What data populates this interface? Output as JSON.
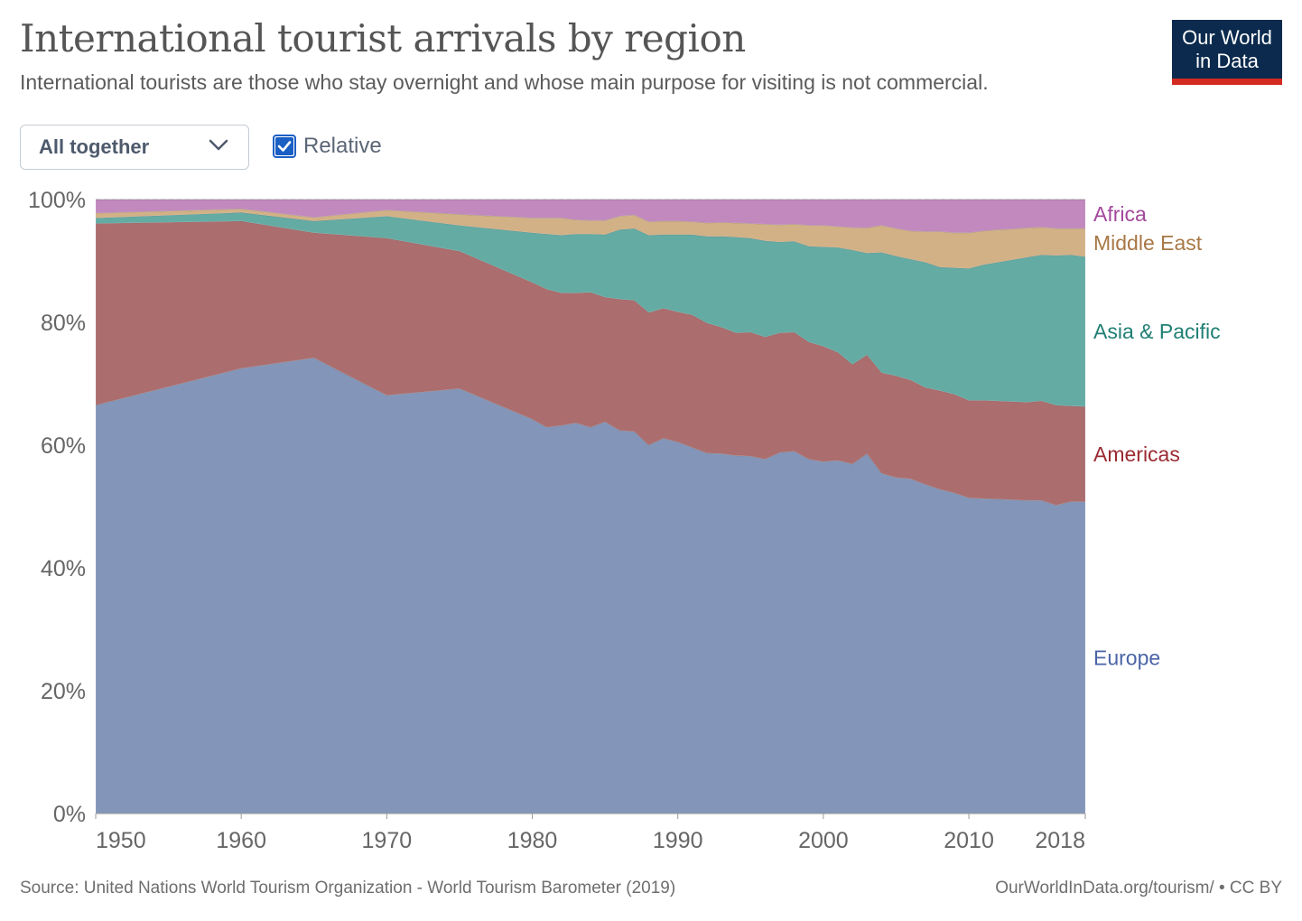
{
  "header": {
    "title": "International tourist arrivals by region",
    "subtitle": "International tourists are those who stay overnight and whose main purpose for visiting is not commercial.",
    "logo_line1": "Our World",
    "logo_line2": "in Data"
  },
  "controls": {
    "dropdown_value": "All together",
    "relative_label": "Relative",
    "relative_checked": true
  },
  "footer": {
    "source": "Source: United Nations World Tourism Organization - World Tourism Barometer (2019)",
    "license": "OurWorldInData.org/tourism/ • CC BY"
  },
  "chart_data": {
    "type": "area",
    "stacked": true,
    "relative": true,
    "title": "International tourist arrivals by region",
    "xlim": [
      1950,
      2018
    ],
    "ylim": [
      0,
      100
    ],
    "y_ticks": [
      0,
      20,
      40,
      60,
      80,
      100
    ],
    "y_tick_labels": [
      "0%",
      "20%",
      "40%",
      "60%",
      "80%",
      "100%"
    ],
    "x_ticks": [
      1950,
      1960,
      1970,
      1980,
      1990,
      2000,
      2010,
      2018
    ],
    "x_tick_labels": [
      "1950",
      "1960",
      "1970",
      "1980",
      "1990",
      "2000",
      "2010",
      "2018"
    ],
    "grid": "horizontal dashed",
    "legend_placement": "right (inline labels)",
    "x": [
      1950,
      1960,
      1965,
      1970,
      1975,
      1980,
      1981,
      1982,
      1983,
      1984,
      1985,
      1986,
      1987,
      1988,
      1989,
      1990,
      1991,
      1992,
      1993,
      1994,
      1995,
      1996,
      1997,
      1998,
      1999,
      2000,
      2001,
      2002,
      2003,
      2004,
      2005,
      2006,
      2007,
      2008,
      2009,
      2010,
      2011,
      2012,
      2013,
      2014,
      2015,
      2016,
      2017,
      2018
    ],
    "series": [
      {
        "name": "Europe",
        "color": "#8396b9",
        "label_color": "#4a64a6",
        "values": [
          66.5,
          72.5,
          74.2,
          68.1,
          69.2,
          64.2,
          62.9,
          63.2,
          63.6,
          62.9,
          63.8,
          62.4,
          62.2,
          60.0,
          61.1,
          60.5,
          59.6,
          58.7,
          58.6,
          58.3,
          58.2,
          57.7,
          58.8,
          59.0,
          57.7,
          57.3,
          57.5,
          57.5,
          58.6,
          55.4,
          54.7,
          54.5,
          53.6,
          52.8,
          52.2,
          51.4,
          51.3,
          51.2,
          51.1,
          51.0,
          51.0,
          50.2,
          50.8,
          50.8
        ]
      },
      {
        "name": "Americas",
        "color": "#ab6d6e",
        "label_color": "#9b2a31",
        "values": [
          29.6,
          24.0,
          20.4,
          25.6,
          22.4,
          22.3,
          22.5,
          21.6,
          21.2,
          22.0,
          20.3,
          21.4,
          21.4,
          21.6,
          21.2,
          21.2,
          21.6,
          21.2,
          20.6,
          20.0,
          20.2,
          19.9,
          19.5,
          19.4,
          19.1,
          18.8,
          17.6,
          16.4,
          16.1,
          16.4,
          16.6,
          16.1,
          15.8,
          16.1,
          16.1,
          15.9,
          16.0,
          16.0,
          16.0,
          16.0,
          16.2,
          16.3,
          15.6,
          15.5
        ]
      },
      {
        "name": "Asia & Pacific",
        "color": "#64aba3",
        "label_color": "#1f7f74",
        "values": [
          0.9,
          1.4,
          1.9,
          3.6,
          4.2,
          8.1,
          9.0,
          9.4,
          9.6,
          9.5,
          10.2,
          11.3,
          11.7,
          12.6,
          12.0,
          12.6,
          13.1,
          14.1,
          14.8,
          15.6,
          15.3,
          15.7,
          14.8,
          14.8,
          15.6,
          16.2,
          17.1,
          18.8,
          16.6,
          19.6,
          19.5,
          19.7,
          20.4,
          20.1,
          20.6,
          21.5,
          22.1,
          22.6,
          23.1,
          23.6,
          23.8,
          24.4,
          24.6,
          24.4
        ]
      },
      {
        "name": "Middle East",
        "color": "#d2b186",
        "label_color": "#a87845",
        "values": [
          0.8,
          0.6,
          0.6,
          1.0,
          1.8,
          2.4,
          2.6,
          2.8,
          2.3,
          2.2,
          2.3,
          2.2,
          2.2,
          2.2,
          2.2,
          2.2,
          2.1,
          2.2,
          2.3,
          2.3,
          2.4,
          2.7,
          2.8,
          2.8,
          3.4,
          3.5,
          3.4,
          3.7,
          4.1,
          4.4,
          4.5,
          4.6,
          5.0,
          5.8,
          5.7,
          5.8,
          5.5,
          5.3,
          5.0,
          4.8,
          4.5,
          4.4,
          4.3,
          4.6
        ]
      },
      {
        "name": "Africa",
        "color": "#c189bd",
        "label_color": "#a3479b",
        "values": [
          2.2,
          1.5,
          2.9,
          1.7,
          2.4,
          3.0,
          3.0,
          3.0,
          3.3,
          3.4,
          3.4,
          2.7,
          2.5,
          3.6,
          3.5,
          3.5,
          3.6,
          3.8,
          3.7,
          3.8,
          3.9,
          4.0,
          4.1,
          4.0,
          4.2,
          4.2,
          4.4,
          4.6,
          4.6,
          4.2,
          4.7,
          5.1,
          5.2,
          5.2,
          5.4,
          5.4,
          5.1,
          4.9,
          4.8,
          4.6,
          4.5,
          4.7,
          4.7,
          4.7
        ]
      }
    ]
  }
}
